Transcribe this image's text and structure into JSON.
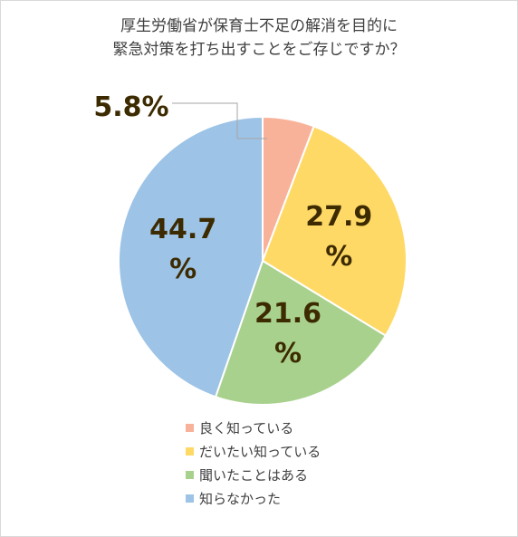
{
  "chart_data": {
    "type": "pie",
    "title_lines": [
      "厚生労働省が保育士不足の解消を目的に",
      "緊急対策を打ち出すことをご存じですか？"
    ],
    "slices": [
      {
        "label": "良く知っている",
        "value": 5.8,
        "color": "#f8b29a",
        "data_label": "5.8%"
      },
      {
        "label": "だいたい知っている",
        "value": 27.9,
        "color": "#ffd966",
        "data_label_lines": [
          "27.9",
          "%"
        ]
      },
      {
        "label": "聞いたことはある",
        "value": 21.6,
        "color": "#a9d18e",
        "data_label_lines": [
          "21.6",
          "%"
        ]
      },
      {
        "label": "知らなかった",
        "value": 44.7,
        "color": "#9dc3e6",
        "data_label_lines": [
          "44.7",
          "%"
        ]
      }
    ],
    "unit": "%",
    "label_color": "#3d2b00",
    "legend_position": "bottom"
  }
}
